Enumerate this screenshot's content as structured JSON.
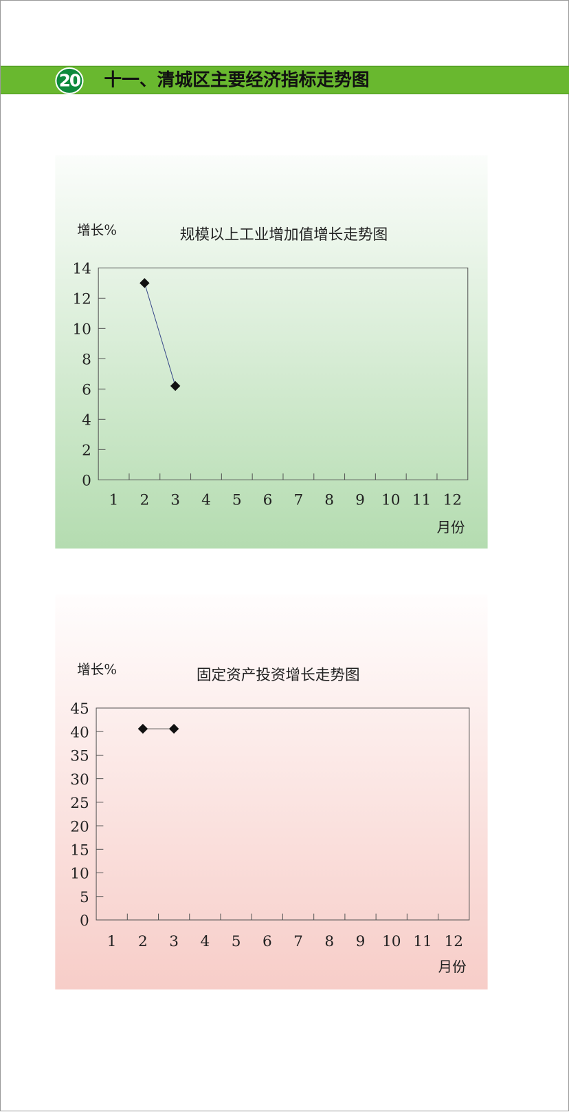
{
  "header": {
    "page_number": "20",
    "title": "十一、清城区主要经济指标走势图"
  },
  "colors": {
    "header_bar": "#69b82f",
    "badge": "#0e8a3c",
    "panel1": "#b4dcb0",
    "panel2": "#f7cdc8",
    "line1": "#3a4a8a",
    "line2": "#555555"
  },
  "chart_data": [
    {
      "type": "line",
      "title": "规模以上工业增加值增长走势图",
      "ylabel": "增长%",
      "xlabel": "月份",
      "categories": [
        "1",
        "2",
        "3",
        "4",
        "5",
        "6",
        "7",
        "8",
        "9",
        "10",
        "11",
        "12"
      ],
      "x": [
        2,
        3
      ],
      "values": [
        13,
        6.2
      ],
      "ylim": [
        0,
        14
      ],
      "yticks": [
        "0",
        "2",
        "4",
        "6",
        "8",
        "10",
        "12",
        "14"
      ],
      "marker": "diamond",
      "grid": false
    },
    {
      "type": "line",
      "title": "固定资产投资增长走势图",
      "ylabel": "增长%",
      "xlabel": "月份",
      "categories": [
        "1",
        "2",
        "3",
        "4",
        "5",
        "6",
        "7",
        "8",
        "9",
        "10",
        "11",
        "12"
      ],
      "x": [
        2,
        3
      ],
      "values": [
        40.6,
        40.6
      ],
      "ylim": [
        0,
        45
      ],
      "yticks": [
        "0",
        "5",
        "10",
        "15",
        "20",
        "25",
        "30",
        "35",
        "40",
        "45"
      ],
      "marker": "diamond",
      "grid": false
    }
  ]
}
